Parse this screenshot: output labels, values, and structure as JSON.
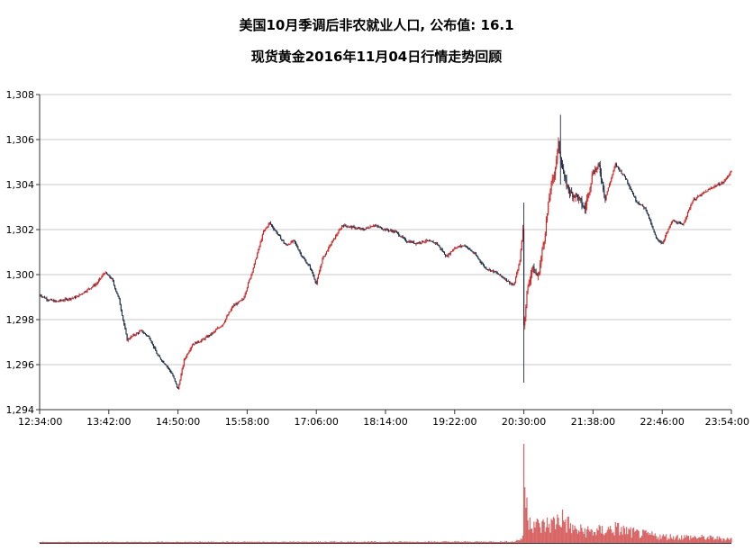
{
  "chart_data": {
    "type": "candlestick",
    "title": "美国10月季调后非农就业人口, 公布值: 16.1",
    "subtitle": "现货黄金2016年11月04日行情走势回顾",
    "xlabel": "",
    "ylabel": "",
    "ylim": [
      1294,
      1308
    ],
    "y_ticks": [
      "1,294",
      "1,296",
      "1,298",
      "1,300",
      "1,302",
      "1,304",
      "1,306",
      "1,308"
    ],
    "x_ticks": [
      "12:34:00",
      "13:42:00",
      "14:50:00",
      "15:58:00",
      "17:06:00",
      "18:14:00",
      "19:22:00",
      "20:30:00",
      "21:38:00",
      "22:46:00",
      "23:54:00"
    ],
    "x_range": [
      "12:34:00",
      "23:54:00"
    ],
    "grid": "horizontal",
    "legend": "none",
    "colors": {
      "up": "#cc2222",
      "down": "#1a2a44",
      "volume": "#cc3333",
      "grid": "#c8c8c8"
    },
    "price_path": [
      [
        "12:34",
        1299.1
      ],
      [
        "12:42",
        1298.9
      ],
      [
        "12:50",
        1298.8
      ],
      [
        "13:00",
        1298.9
      ],
      [
        "13:10",
        1299.0
      ],
      [
        "13:20",
        1299.3
      ],
      [
        "13:30",
        1299.6
      ],
      [
        "13:38",
        1300.1
      ],
      [
        "13:45",
        1299.8
      ],
      [
        "13:52",
        1298.9
      ],
      [
        "14:00",
        1297.1
      ],
      [
        "14:06",
        1297.3
      ],
      [
        "14:14",
        1297.5
      ],
      [
        "14:22",
        1297.2
      ],
      [
        "14:30",
        1296.4
      ],
      [
        "14:38",
        1296.0
      ],
      [
        "14:44",
        1295.6
      ],
      [
        "14:50",
        1294.9
      ],
      [
        "14:56",
        1296.2
      ],
      [
        "15:04",
        1296.9
      ],
      [
        "15:14",
        1297.1
      ],
      [
        "15:24",
        1297.4
      ],
      [
        "15:34",
        1297.8
      ],
      [
        "15:44",
        1298.6
      ],
      [
        "15:54",
        1298.9
      ],
      [
        "16:04",
        1300.3
      ],
      [
        "16:14",
        1301.9
      ],
      [
        "16:20",
        1302.3
      ],
      [
        "16:28",
        1301.8
      ],
      [
        "16:36",
        1301.3
      ],
      [
        "16:44",
        1301.5
      ],
      [
        "16:52",
        1300.8
      ],
      [
        "17:00",
        1300.3
      ],
      [
        "17:06",
        1299.6
      ],
      [
        "17:12",
        1300.7
      ],
      [
        "17:22",
        1301.5
      ],
      [
        "17:32",
        1302.2
      ],
      [
        "17:42",
        1302.1
      ],
      [
        "17:52",
        1302.0
      ],
      [
        "18:02",
        1302.2
      ],
      [
        "18:14",
        1302.0
      ],
      [
        "18:24",
        1301.9
      ],
      [
        "18:34",
        1301.5
      ],
      [
        "18:44",
        1301.4
      ],
      [
        "18:54",
        1301.5
      ],
      [
        "19:04",
        1301.4
      ],
      [
        "19:14",
        1300.8
      ],
      [
        "19:22",
        1301.2
      ],
      [
        "19:32",
        1301.3
      ],
      [
        "19:42",
        1300.9
      ],
      [
        "19:52",
        1300.3
      ],
      [
        "20:02",
        1300.1
      ],
      [
        "20:12",
        1299.8
      ],
      [
        "20:20",
        1299.5
      ],
      [
        "20:26",
        1300.6
      ],
      [
        "20:29",
        1302.1
      ],
      [
        "20:30",
        1297.7
      ],
      [
        "20:33",
        1299.2
      ],
      [
        "20:38",
        1300.3
      ],
      [
        "20:44",
        1299.9
      ],
      [
        "20:50",
        1301.6
      ],
      [
        "20:56",
        1303.8
      ],
      [
        "21:00",
        1304.5
      ],
      [
        "21:04",
        1305.8
      ],
      [
        "21:10",
        1304.2
      ],
      [
        "21:16",
        1303.6
      ],
      [
        "21:22",
        1303.5
      ],
      [
        "21:30",
        1302.9
      ],
      [
        "21:38",
        1304.6
      ],
      [
        "21:44",
        1304.8
      ],
      [
        "21:50",
        1303.4
      ],
      [
        "22:00",
        1304.9
      ],
      [
        "22:10",
        1304.3
      ],
      [
        "22:20",
        1303.3
      ],
      [
        "22:30",
        1302.9
      ],
      [
        "22:40",
        1301.6
      ],
      [
        "22:46",
        1301.4
      ],
      [
        "22:56",
        1302.4
      ],
      [
        "23:06",
        1302.2
      ],
      [
        "23:16",
        1303.3
      ],
      [
        "23:26",
        1303.6
      ],
      [
        "23:36",
        1303.9
      ],
      [
        "23:46",
        1304.1
      ],
      [
        "23:54",
        1304.6
      ]
    ],
    "spikes": [
      {
        "time": "20:30",
        "low": 1295.2,
        "high": 1303.2
      },
      {
        "time": "21:06",
        "low": 1304.0,
        "high": 1307.1
      }
    ],
    "volume_path": [
      [
        "12:34",
        1
      ],
      [
        "20:20",
        1.5
      ],
      [
        "20:29",
        6
      ],
      [
        "20:30",
        100
      ],
      [
        "20:32",
        48
      ],
      [
        "20:36",
        30
      ],
      [
        "20:45",
        20
      ],
      [
        "21:00",
        25
      ],
      [
        "21:06",
        32
      ],
      [
        "21:20",
        16
      ],
      [
        "21:40",
        14
      ],
      [
        "22:00",
        18
      ],
      [
        "22:20",
        12
      ],
      [
        "22:46",
        8
      ],
      [
        "23:20",
        7
      ],
      [
        "23:54",
        5
      ]
    ]
  }
}
